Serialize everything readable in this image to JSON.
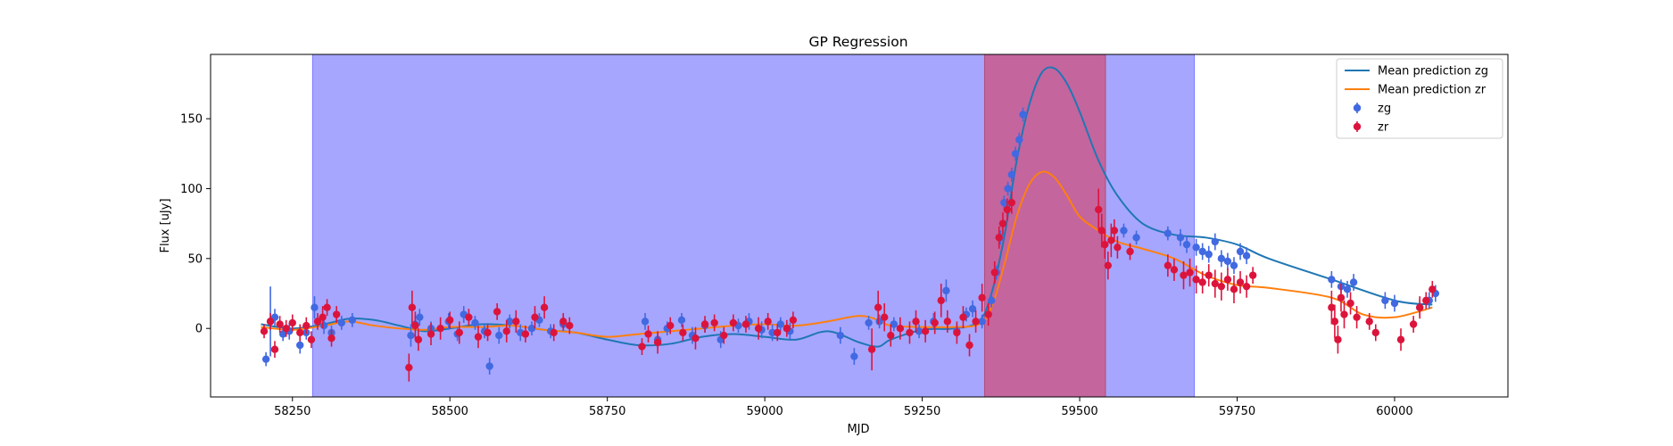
{
  "chart_data": {
    "type": "scatter",
    "title": "GP Regression",
    "xlabel": "MJD",
    "ylabel": "Flux [uJy]",
    "xlim": [
      58120,
      60180
    ],
    "ylim": [
      -49,
      196
    ],
    "xticks": [
      58250,
      58500,
      58750,
      59000,
      59250,
      59500,
      59750,
      60000
    ],
    "yticks": [
      0,
      50,
      100,
      150
    ],
    "grid": false,
    "legend_position": "top-right",
    "shaded_regions": [
      {
        "x0": 58282,
        "x1": 59682,
        "color": "#a6a6ff"
      },
      {
        "x0": 59349,
        "x1": 59541,
        "color": "#c4659e"
      }
    ],
    "series": [
      {
        "name": "Mean prediction zg",
        "kind": "line",
        "color": "#1f77b4",
        "x": [
          58200,
          58250,
          58300,
          58340,
          58380,
          58420,
          58460,
          58500,
          58550,
          58600,
          58650,
          58700,
          58750,
          58800,
          58850,
          58900,
          58950,
          59000,
          59050,
          59100,
          59150,
          59180,
          59200,
          59250,
          59300,
          59340,
          59360,
          59380,
          59400,
          59420,
          59440,
          59460,
          59480,
          59500,
          59530,
          59560,
          59600,
          59650,
          59700,
          59750,
          59800,
          59900,
          60000,
          60060
        ],
        "y": [
          3,
          0,
          3,
          7,
          6,
          2,
          -2,
          0,
          3,
          2,
          -1,
          -3,
          -8,
          -12,
          -11,
          -6,
          -4,
          -6,
          -8,
          -2,
          -10,
          -13,
          -8,
          -1,
          0,
          5,
          25,
          65,
          120,
          160,
          183,
          186,
          175,
          155,
          120,
          95,
          75,
          67,
          65,
          60,
          50,
          35,
          20,
          17
        ]
      },
      {
        "name": "Mean prediction zr",
        "kind": "line",
        "color": "#ff7f0e",
        "x": [
          58200,
          58250,
          58300,
          58340,
          58380,
          58420,
          58460,
          58500,
          58550,
          58600,
          58650,
          58700,
          58750,
          58800,
          58850,
          58900,
          58950,
          59000,
          59050,
          59100,
          59150,
          59180,
          59200,
          59250,
          59300,
          59340,
          59360,
          59380,
          59400,
          59420,
          59440,
          59460,
          59480,
          59500,
          59530,
          59560,
          59600,
          59650,
          59700,
          59750,
          59800,
          59900,
          59950,
          60000,
          60060
        ],
        "y": [
          1,
          -1,
          2,
          5,
          2,
          0,
          -1,
          1,
          1,
          2,
          -1,
          -3,
          -6,
          -4,
          -2,
          0,
          2,
          3,
          2,
          5,
          9,
          6,
          2,
          1,
          1,
          3,
          15,
          45,
          80,
          103,
          112,
          108,
          95,
          80,
          70,
          62,
          57,
          50,
          38,
          31,
          29,
          22,
          10,
          8,
          15
        ]
      },
      {
        "name": "zg",
        "kind": "errorbar",
        "color": "#4169e1",
        "x": [
          58208,
          58215,
          58222,
          58235,
          58245,
          58262,
          58272,
          58285,
          58300,
          58312,
          58328,
          58345,
          58438,
          58445,
          58452,
          58470,
          58498,
          58512,
          58522,
          58540,
          58555,
          58563,
          58578,
          58595,
          58612,
          58630,
          58642,
          58660,
          58680,
          58810,
          58830,
          58845,
          58868,
          58885,
          58905,
          58930,
          58958,
          58975,
          58995,
          59012,
          59025,
          59040,
          59120,
          59142,
          59165,
          59182,
          59205,
          59245,
          59268,
          59288,
          59305,
          59320,
          59330,
          59345,
          59360,
          59368,
          59374,
          59380,
          59386,
          59392,
          59398,
          59404,
          59410,
          59570,
          59590,
          59640,
          59660,
          59670,
          59685,
          59695,
          59705,
          59715,
          59725,
          59735,
          59745,
          59755,
          59765,
          59900,
          59915,
          59925,
          59935,
          59985,
          60000,
          60040,
          60055,
          60065
        ],
        "y": [
          -22,
          5,
          8,
          -4,
          -2,
          -12,
          -3,
          15,
          2,
          -3,
          4,
          6,
          -5,
          3,
          8,
          0,
          5,
          -4,
          10,
          4,
          -2,
          -27,
          -5,
          5,
          -3,
          0,
          6,
          -2,
          3,
          5,
          -8,
          0,
          6,
          -5,
          2,
          -8,
          2,
          5,
          -1,
          -3,
          3,
          -2,
          -5,
          -20,
          4,
          5,
          3,
          -2,
          5,
          27,
          -2,
          10,
          14,
          5,
          20,
          40,
          65,
          90,
          100,
          110,
          125,
          135,
          153,
          70,
          65,
          68,
          65,
          60,
          58,
          55,
          53,
          62,
          50,
          48,
          45,
          55,
          52,
          35,
          30,
          28,
          33,
          20,
          18,
          15,
          20,
          25
        ],
        "err": [
          5,
          25,
          6,
          5,
          6,
          6,
          5,
          8,
          6,
          5,
          5,
          5,
          8,
          6,
          6,
          5,
          6,
          5,
          6,
          5,
          5,
          6,
          6,
          5,
          6,
          5,
          5,
          5,
          5,
          6,
          6,
          5,
          5,
          6,
          5,
          6,
          5,
          6,
          6,
          6,
          5,
          6,
          6,
          6,
          5,
          5,
          5,
          5,
          6,
          8,
          5,
          5,
          6,
          5,
          5,
          5,
          5,
          5,
          5,
          5,
          5,
          5,
          5,
          5,
          5,
          5,
          6,
          6,
          6,
          6,
          6,
          6,
          6,
          6,
          6,
          6,
          6,
          6,
          5,
          6,
          6,
          6,
          6,
          6,
          6,
          6
        ]
      },
      {
        "name": "zr",
        "kind": "errorbar",
        "color": "#dc143c",
        "x": [
          58205,
          58215,
          58222,
          58230,
          58240,
          58250,
          58262,
          58272,
          58280,
          58290,
          58298,
          58305,
          58312,
          58320,
          58435,
          58440,
          58445,
          58450,
          58470,
          58485,
          58500,
          58515,
          58530,
          58545,
          58560,
          58575,
          58590,
          58605,
          58620,
          58635,
          58650,
          58665,
          58680,
          58690,
          58805,
          58815,
          58830,
          58850,
          58870,
          58890,
          58905,
          58920,
          58935,
          58950,
          58970,
          58990,
          59005,
          59020,
          59035,
          59045,
          59170,
          59180,
          59190,
          59200,
          59215,
          59230,
          59240,
          59255,
          59270,
          59280,
          59290,
          59305,
          59315,
          59325,
          59335,
          59345,
          59355,
          59365,
          59372,
          59378,
          59385,
          59392,
          59530,
          59535,
          59540,
          59545,
          59550,
          59555,
          59560,
          59580,
          59640,
          59650,
          59665,
          59675,
          59685,
          59695,
          59705,
          59715,
          59725,
          59735,
          59745,
          59755,
          59765,
          59775,
          59900,
          59905,
          59910,
          59915,
          59920,
          59930,
          59940,
          59960,
          59970,
          60010,
          60030,
          60040,
          60050,
          60060
        ],
        "y": [
          -2,
          5,
          -15,
          3,
          0,
          4,
          -3,
          2,
          -8,
          5,
          8,
          15,
          -7,
          10,
          -28,
          15,
          2,
          -8,
          -4,
          0,
          6,
          -3,
          8,
          -6,
          -3,
          12,
          -2,
          5,
          -4,
          8,
          15,
          -3,
          5,
          2,
          -13,
          -4,
          -10,
          2,
          -3,
          -7,
          3,
          4,
          -5,
          4,
          3,
          0,
          5,
          -3,
          0,
          6,
          -15,
          15,
          8,
          -5,
          0,
          -3,
          5,
          -2,
          4,
          20,
          5,
          -3,
          8,
          -12,
          5,
          22,
          10,
          40,
          65,
          75,
          85,
          90,
          85,
          70,
          60,
          45,
          63,
          70,
          58,
          55,
          45,
          42,
          38,
          40,
          35,
          33,
          38,
          32,
          30,
          35,
          28,
          33,
          30,
          38,
          15,
          5,
          -8,
          22,
          10,
          18,
          8,
          5,
          -3,
          -8,
          3,
          15,
          20,
          28
        ],
        "err": [
          5,
          6,
          6,
          6,
          6,
          6,
          6,
          6,
          6,
          6,
          8,
          6,
          6,
          6,
          10,
          12,
          10,
          8,
          8,
          8,
          6,
          8,
          6,
          8,
          6,
          6,
          8,
          8,
          6,
          8,
          8,
          6,
          6,
          6,
          6,
          6,
          8,
          6,
          6,
          8,
          6,
          6,
          6,
          6,
          6,
          8,
          6,
          6,
          6,
          6,
          15,
          12,
          10,
          8,
          8,
          8,
          8,
          8,
          8,
          12,
          8,
          8,
          8,
          8,
          8,
          10,
          8,
          8,
          8,
          8,
          8,
          8,
          15,
          12,
          10,
          10,
          12,
          8,
          8,
          6,
          8,
          8,
          10,
          10,
          10,
          8,
          8,
          10,
          10,
          8,
          10,
          8,
          8,
          6,
          12,
          12,
          10,
          10,
          10,
          8,
          8,
          6,
          6,
          8,
          6,
          8,
          6,
          6
        ]
      }
    ]
  }
}
